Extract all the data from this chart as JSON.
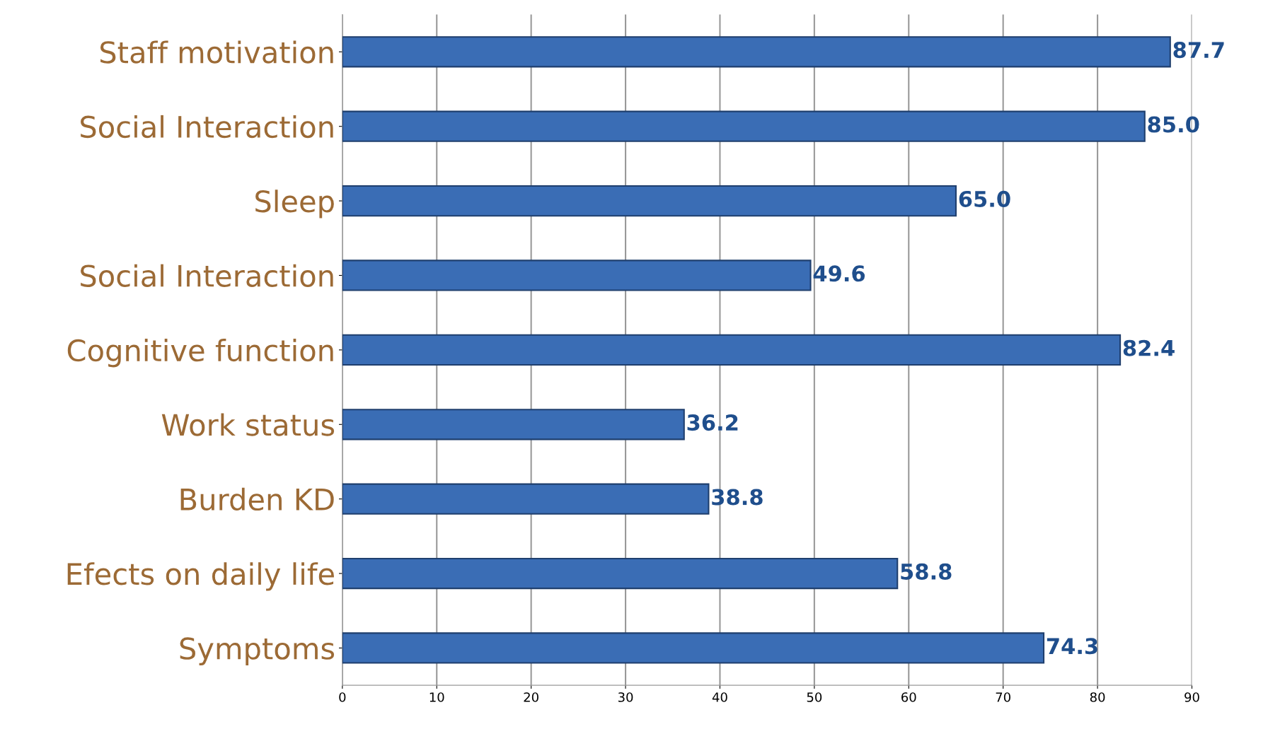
{
  "chart_data": {
    "type": "bar",
    "orientation": "horizontal",
    "categories": [
      "Staff motivation",
      "Social Interaction",
      "Sleep",
      "Social Interaction",
      "Cognitive function",
      "Work status",
      "Burden KD",
      "Efects on daily life",
      "Symptoms"
    ],
    "values": [
      87.7,
      85.0,
      65.0,
      49.6,
      82.4,
      36.2,
      38.8,
      58.8,
      74.3
    ],
    "value_labels": [
      "87.7",
      "85.0",
      "65.0",
      "49.6",
      "82.4",
      "36.2",
      "38.8",
      "58.8",
      "74.3"
    ],
    "color": "#3a6db5",
    "xlim": [
      0,
      90
    ],
    "xticks": [
      0,
      10,
      20,
      30,
      40,
      50,
      60,
      70,
      80,
      90
    ],
    "grid": "x",
    "legend": false
  }
}
